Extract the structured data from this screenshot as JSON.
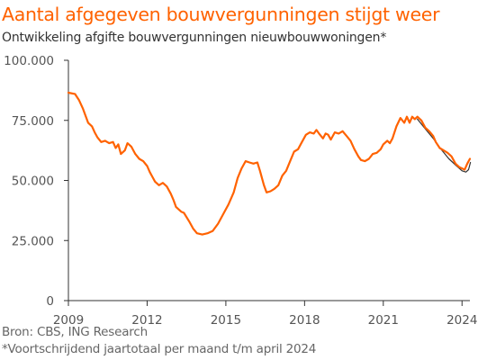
{
  "title": "Aantal afgegeven bouwvergunningen stijgt weer",
  "subtitle": "Ontwikkeling afgifte bouwvergunningen nieuwbouwwoningen*",
  "source": "Bron: CBS, ING Research",
  "note": "*Voortschrijdend jaartotaal per maand t/m april 2024",
  "colors": {
    "main_line": "#FF6200",
    "trend_line": "#333333",
    "axis": "#333333",
    "title": "#FF6200"
  },
  "chart_data": {
    "type": "line",
    "title": "Aantal afgegeven bouwvergunningen stijgt weer",
    "subtitle": "Ontwikkeling afgifte bouwvergunningen nieuwbouwwoningen*",
    "xlabel": "",
    "ylabel": "",
    "xlim": [
      2009.0,
      2024.3
    ],
    "ylim": [
      0,
      100000
    ],
    "grid": false,
    "legend": "none",
    "x_ticks": [
      2009,
      2012,
      2015,
      2018,
      2021,
      2024
    ],
    "x_tick_labels": [
      "2009",
      "2012",
      "2015",
      "2018",
      "2021",
      "2024"
    ],
    "y_ticks": [
      0,
      25000,
      50000,
      75000,
      100000
    ],
    "y_tick_labels": [
      "0",
      "25.000",
      "50.000",
      "75.000",
      "100.000"
    ],
    "series": [
      {
        "color": "#FF6200",
        "points": [
          [
            2009.0,
            86500
          ],
          [
            2009.25,
            86000
          ],
          [
            2009.4,
            83500
          ],
          [
            2009.55,
            80000
          ],
          [
            2009.75,
            74000
          ],
          [
            2009.9,
            72500
          ],
          [
            2010.0,
            70000
          ],
          [
            2010.1,
            68000
          ],
          [
            2010.25,
            66000
          ],
          [
            2010.4,
            66500
          ],
          [
            2010.55,
            65500
          ],
          [
            2010.7,
            66000
          ],
          [
            2010.8,
            63500
          ],
          [
            2010.9,
            65000
          ],
          [
            2011.0,
            61000
          ],
          [
            2011.15,
            62500
          ],
          [
            2011.25,
            65500
          ],
          [
            2011.4,
            64000
          ],
          [
            2011.55,
            61000
          ],
          [
            2011.7,
            59000
          ],
          [
            2011.85,
            58000
          ],
          [
            2012.0,
            56000
          ],
          [
            2012.1,
            53500
          ],
          [
            2012.2,
            51500
          ],
          [
            2012.3,
            49500
          ],
          [
            2012.45,
            48000
          ],
          [
            2012.6,
            49000
          ],
          [
            2012.75,
            47500
          ],
          [
            2012.9,
            44500
          ],
          [
            2013.0,
            42000
          ],
          [
            2013.1,
            39000
          ],
          [
            2013.3,
            37000
          ],
          [
            2013.4,
            36500
          ],
          [
            2013.6,
            33000
          ],
          [
            2013.75,
            30000
          ],
          [
            2013.9,
            28000
          ],
          [
            2014.1,
            27500
          ],
          [
            2014.3,
            28000
          ],
          [
            2014.5,
            29000
          ],
          [
            2014.7,
            32000
          ],
          [
            2014.9,
            36000
          ],
          [
            2015.1,
            40000
          ],
          [
            2015.3,
            45000
          ],
          [
            2015.45,
            51000
          ],
          [
            2015.6,
            55000
          ],
          [
            2015.75,
            58000
          ],
          [
            2015.9,
            57500
          ],
          [
            2016.05,
            57000
          ],
          [
            2016.2,
            57500
          ],
          [
            2016.3,
            54000
          ],
          [
            2016.45,
            48000
          ],
          [
            2016.55,
            45000
          ],
          [
            2016.7,
            45500
          ],
          [
            2016.85,
            46500
          ],
          [
            2017.0,
            48000
          ],
          [
            2017.15,
            52000
          ],
          [
            2017.3,
            54000
          ],
          [
            2017.45,
            58000
          ],
          [
            2017.6,
            62000
          ],
          [
            2017.75,
            63000
          ],
          [
            2017.9,
            66000
          ],
          [
            2018.05,
            69000
          ],
          [
            2018.2,
            70000
          ],
          [
            2018.35,
            69500
          ],
          [
            2018.45,
            71000
          ],
          [
            2018.55,
            69500
          ],
          [
            2018.7,
            67500
          ],
          [
            2018.8,
            69500
          ],
          [
            2018.9,
            69000
          ],
          [
            2019.0,
            67000
          ],
          [
            2019.15,
            70000
          ],
          [
            2019.3,
            69500
          ],
          [
            2019.45,
            70500
          ],
          [
            2019.6,
            68500
          ],
          [
            2019.75,
            66500
          ],
          [
            2019.9,
            63000
          ],
          [
            2020.05,
            60000
          ],
          [
            2020.15,
            58500
          ],
          [
            2020.3,
            58000
          ],
          [
            2020.45,
            59000
          ],
          [
            2020.6,
            61000
          ],
          [
            2020.75,
            61500
          ],
          [
            2020.9,
            63000
          ],
          [
            2021.0,
            65000
          ],
          [
            2021.15,
            66500
          ],
          [
            2021.25,
            65500
          ],
          [
            2021.35,
            67500
          ],
          [
            2021.5,
            72500
          ],
          [
            2021.65,
            76000
          ],
          [
            2021.8,
            74000
          ],
          [
            2021.9,
            76500
          ],
          [
            2022.0,
            74000
          ],
          [
            2022.1,
            76500
          ],
          [
            2022.2,
            75500
          ],
          [
            2022.3,
            76500
          ],
          [
            2022.45,
            75000
          ],
          [
            2022.6,
            72000
          ],
          [
            2022.75,
            70500
          ],
          [
            2022.9,
            68500
          ],
          [
            2023.0,
            66000
          ],
          [
            2023.15,
            63500
          ],
          [
            2023.3,
            62500
          ],
          [
            2023.45,
            61500
          ],
          [
            2023.6,
            60000
          ],
          [
            2023.75,
            57000
          ],
          [
            2023.9,
            55500
          ],
          [
            2024.0,
            55000
          ],
          [
            2024.1,
            54500
          ],
          [
            2024.2,
            57000
          ],
          [
            2024.3,
            59000
          ]
        ]
      },
      {
        "color": "#333333",
        "points": [
          [
            2022.3,
            75500
          ],
          [
            2022.6,
            71500
          ],
          [
            2022.9,
            67500
          ],
          [
            2023.2,
            63000
          ],
          [
            2023.5,
            59000
          ],
          [
            2023.8,
            56000
          ],
          [
            2024.0,
            54000
          ],
          [
            2024.15,
            53500
          ],
          [
            2024.25,
            54500
          ],
          [
            2024.32,
            57500
          ]
        ]
      }
    ]
  }
}
